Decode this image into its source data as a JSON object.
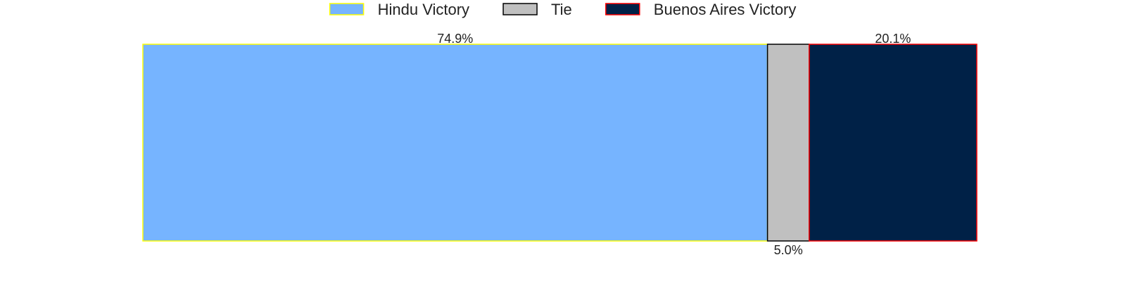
{
  "chart_data": {
    "type": "bar",
    "orientation": "horizontal",
    "stacked": true,
    "normalized": true,
    "title": "",
    "xlabel": "",
    "ylabel": "",
    "xlim": [
      0,
      100
    ],
    "grid": false,
    "legend_position": "top-center",
    "series": [
      {
        "name": "Hindu Victory",
        "value": 74.9,
        "label": "74.9%",
        "fill": "#76b4ff",
        "stroke": "#ffff00",
        "label_position": "above"
      },
      {
        "name": "Tie",
        "value": 5.0,
        "label": "5.0%",
        "fill": "#c0c0c0",
        "stroke": "#000000",
        "label_position": "below"
      },
      {
        "name": "Buenos Aires Victory",
        "value": 20.1,
        "label": "20.1%",
        "fill": "#002147",
        "stroke": "#ff0000",
        "label_position": "above"
      }
    ]
  }
}
